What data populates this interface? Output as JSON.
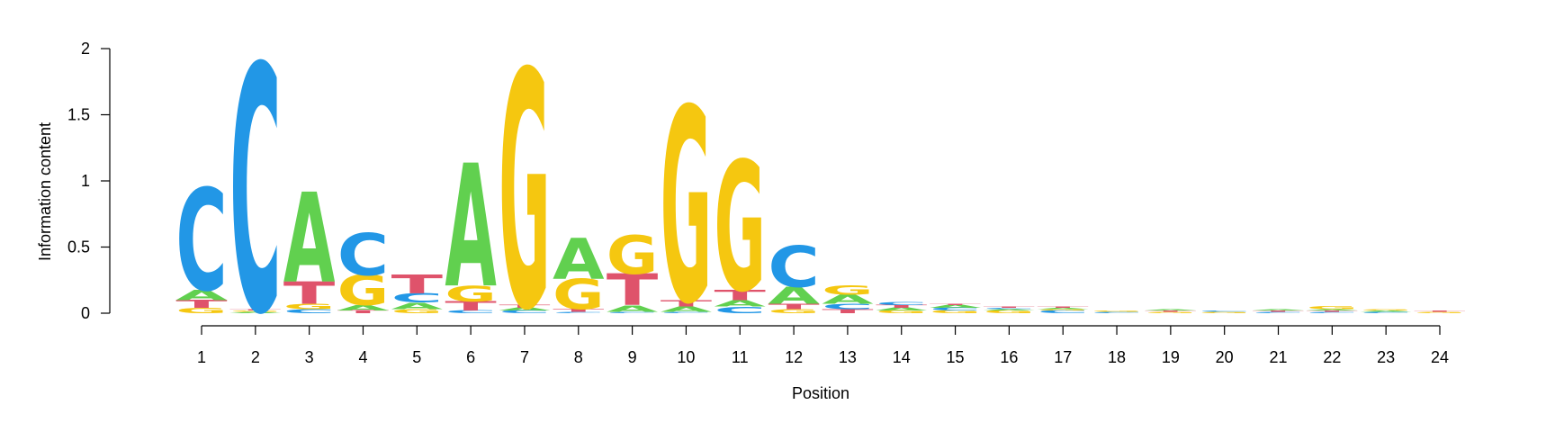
{
  "chart_data": {
    "type": "sequence-logo",
    "xlabel": "Position",
    "ylabel": "Information content",
    "ylim": [
      0,
      2
    ],
    "yticks": [
      "0",
      "0.5",
      "1",
      "1.5",
      "2"
    ],
    "colors": {
      "A": "#61D04F",
      "C": "#2297E6",
      "G": "#F5C710",
      "T": "#DF536B"
    },
    "positions": [
      {
        "label": "1",
        "stack": [
          [
            "G",
            0.04
          ],
          [
            "T",
            0.06
          ],
          [
            "A",
            0.08
          ],
          [
            "C",
            0.77
          ]
        ]
      },
      {
        "label": "2",
        "stack": [
          [
            "A",
            0.01
          ],
          [
            "G",
            0.01
          ],
          [
            "T",
            0.01
          ],
          [
            "C",
            1.86
          ]
        ]
      },
      {
        "label": "3",
        "stack": [
          [
            "C",
            0.03
          ],
          [
            "G",
            0.04
          ],
          [
            "T",
            0.17
          ],
          [
            "A",
            0.68
          ]
        ]
      },
      {
        "label": "4",
        "stack": [
          [
            "T",
            0.02
          ],
          [
            "A",
            0.04
          ],
          [
            "G",
            0.23
          ],
          [
            "C",
            0.32
          ]
        ]
      },
      {
        "label": "5",
        "stack": [
          [
            "G",
            0.03
          ],
          [
            "A",
            0.05
          ],
          [
            "C",
            0.07
          ],
          [
            "T",
            0.14
          ]
        ]
      },
      {
        "label": "6",
        "stack": [
          [
            "C",
            0.02
          ],
          [
            "T",
            0.07
          ],
          [
            "G",
            0.12
          ],
          [
            "A",
            0.93
          ]
        ]
      },
      {
        "label": "7",
        "stack": [
          [
            "C",
            0.02
          ],
          [
            "A",
            0.02
          ],
          [
            "T",
            0.02
          ],
          [
            "G",
            1.79
          ]
        ]
      },
      {
        "label": "8",
        "stack": [
          [
            "C",
            0.01
          ],
          [
            "T",
            0.02
          ],
          [
            "G",
            0.23
          ],
          [
            "A",
            0.31
          ]
        ]
      },
      {
        "label": "9",
        "stack": [
          [
            "C",
            0.01
          ],
          [
            "A",
            0.05
          ],
          [
            "T",
            0.24
          ],
          [
            "G",
            0.29
          ]
        ]
      },
      {
        "label": "10",
        "stack": [
          [
            "C",
            0.01
          ],
          [
            "A",
            0.04
          ],
          [
            "T",
            0.05
          ],
          [
            "G",
            1.47
          ]
        ]
      },
      {
        "label": "11",
        "stack": [
          [
            "C",
            0.05
          ],
          [
            "A",
            0.05
          ],
          [
            "T",
            0.08
          ],
          [
            "G",
            0.98
          ]
        ]
      },
      {
        "label": "12",
        "stack": [
          [
            "G",
            0.03
          ],
          [
            "T",
            0.04
          ],
          [
            "A",
            0.13
          ],
          [
            "C",
            0.31
          ]
        ]
      },
      {
        "label": "13",
        "stack": [
          [
            "T",
            0.03
          ],
          [
            "C",
            0.04
          ],
          [
            "A",
            0.07
          ],
          [
            "G",
            0.07
          ]
        ]
      },
      {
        "label": "14",
        "stack": [
          [
            "G",
            0.02
          ],
          [
            "A",
            0.02
          ],
          [
            "T",
            0.02
          ],
          [
            "C",
            0.02
          ]
        ]
      },
      {
        "label": "15",
        "stack": [
          [
            "G",
            0.02
          ],
          [
            "C",
            0.02
          ],
          [
            "A",
            0.02
          ],
          [
            "T",
            0.01
          ]
        ]
      },
      {
        "label": "16",
        "stack": [
          [
            "G",
            0.02
          ],
          [
            "A",
            0.01
          ],
          [
            "C",
            0.01
          ],
          [
            "T",
            0.01
          ]
        ]
      },
      {
        "label": "17",
        "stack": [
          [
            "C",
            0.02
          ],
          [
            "G",
            0.01
          ],
          [
            "A",
            0.01
          ],
          [
            "T",
            0.01
          ]
        ]
      },
      {
        "label": "18",
        "stack": [
          [
            "C",
            0.01
          ],
          [
            "G",
            0.01
          ]
        ]
      },
      {
        "label": "19",
        "stack": [
          [
            "G",
            0.01
          ],
          [
            "T",
            0.01
          ],
          [
            "A",
            0.01
          ]
        ]
      },
      {
        "label": "20",
        "stack": [
          [
            "G",
            0.01
          ],
          [
            "C",
            0.01
          ]
        ]
      },
      {
        "label": "21",
        "stack": [
          [
            "C",
            0.01
          ],
          [
            "T",
            0.01
          ],
          [
            "A",
            0.01
          ]
        ]
      },
      {
        "label": "22",
        "stack": [
          [
            "C",
            0.01
          ],
          [
            "T",
            0.01
          ],
          [
            "A",
            0.01
          ],
          [
            "G",
            0.02
          ]
        ]
      },
      {
        "label": "23",
        "stack": [
          [
            "C",
            0.01
          ],
          [
            "A",
            0.01
          ],
          [
            "G",
            0.01
          ]
        ]
      },
      {
        "label": "24",
        "stack": [
          [
            "G",
            0.01
          ],
          [
            "T",
            0.01
          ]
        ]
      }
    ]
  }
}
